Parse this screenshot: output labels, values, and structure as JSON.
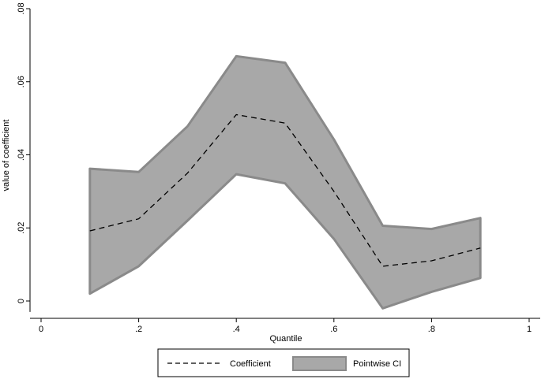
{
  "chart_data": {
    "type": "line",
    "title": "",
    "xlabel": "Quantile",
    "ylabel": "value of coefficient",
    "xlim": [
      0,
      1
    ],
    "ylim": [
      -0.003,
      0.08
    ],
    "x_ticks": [
      0,
      0.2,
      0.4,
      0.6,
      0.8,
      1
    ],
    "x_tick_labels": [
      "0",
      ".2",
      ".4",
      ".6",
      ".8",
      "1"
    ],
    "y_ticks": [
      0,
      0.02,
      0.04,
      0.06,
      0.08
    ],
    "y_tick_labels": [
      "0",
      ".02",
      ".04",
      ".06",
      ".08"
    ],
    "grid": false,
    "legend_position": "bottom",
    "x": [
      0.1,
      0.2,
      0.3,
      0.4,
      0.5,
      0.6,
      0.7,
      0.8,
      0.9
    ],
    "series": [
      {
        "name": "Coefficient",
        "style": "dashed",
        "color": "#000000",
        "values": [
          0.0192,
          0.0225,
          0.035,
          0.051,
          0.0487,
          0.03,
          0.0095,
          0.011,
          0.0145
        ]
      }
    ],
    "band": {
      "name": "Pointwise CI",
      "fill": "#a8a8a8",
      "stroke": "#8a8a8a",
      "lower": [
        0.002,
        0.0095,
        0.022,
        0.0347,
        0.0322,
        0.017,
        -0.002,
        0.0025,
        0.0063
      ],
      "upper": [
        0.0362,
        0.0353,
        0.0478,
        0.067,
        0.0652,
        0.0442,
        0.0206,
        0.0197,
        0.0227
      ]
    }
  }
}
